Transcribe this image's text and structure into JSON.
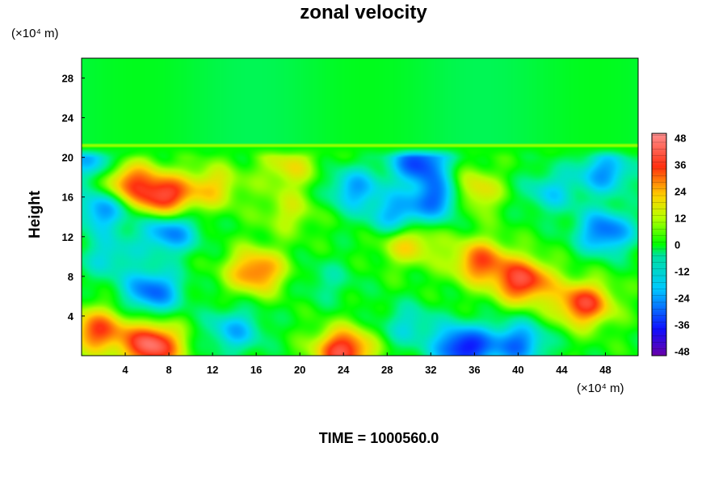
{
  "chart_data": {
    "type": "heatmap",
    "title": "zonal velocity",
    "ylabel": "Height",
    "xlabel": "",
    "x_unit": "(×10⁴ m)",
    "y_unit": "(×10⁴ m)",
    "xlim": [
      0,
      51
    ],
    "ylim": [
      0,
      30
    ],
    "x_ticks": [
      "4",
      "8",
      "12",
      "16",
      "20",
      "24",
      "28",
      "32",
      "36",
      "40",
      "44",
      "48"
    ],
    "y_ticks": [
      "4",
      "8",
      "12",
      "16",
      "20",
      "24",
      "28"
    ],
    "colorbar": {
      "range": [
        -50,
        50
      ],
      "ticks": [
        "48",
        "36",
        "24",
        "12",
        "0",
        "-12",
        "-24",
        "-36",
        "-48"
      ]
    },
    "grid": false,
    "background_value": 0,
    "features": [
      {
        "x": 6.5,
        "y": 6.5,
        "value": -30
      },
      {
        "x": 2.5,
        "y": 10,
        "value": -15
      },
      {
        "x": 16,
        "y": 8.5,
        "value": 30
      },
      {
        "x": 6.5,
        "y": 1,
        "value": 44
      },
      {
        "x": 1.5,
        "y": 2.5,
        "value": 32
      },
      {
        "x": 24,
        "y": 0.5,
        "value": 40
      },
      {
        "x": 35,
        "y": 0.8,
        "value": -40
      },
      {
        "x": 40,
        "y": 1.2,
        "value": -28
      },
      {
        "x": 40.5,
        "y": 7.5,
        "value": 38
      },
      {
        "x": 46,
        "y": 5.2,
        "value": 36
      },
      {
        "x": 36.5,
        "y": 9.5,
        "value": 30
      },
      {
        "x": 30,
        "y": 3,
        "value": -14
      },
      {
        "x": 22.5,
        "y": 7.5,
        "value": -8
      },
      {
        "x": 14,
        "y": 2.5,
        "value": -20
      },
      {
        "x": 7.5,
        "y": 16,
        "value": 38
      },
      {
        "x": 4,
        "y": 17.5,
        "value": 30
      },
      {
        "x": 12,
        "y": 17,
        "value": 18
      },
      {
        "x": 8,
        "y": 12.5,
        "value": -28
      },
      {
        "x": 2,
        "y": 14.8,
        "value": -26
      },
      {
        "x": 33,
        "y": 16,
        "value": -34
      },
      {
        "x": 31,
        "y": 19.6,
        "value": -34
      },
      {
        "x": 29,
        "y": 14,
        "value": -24
      },
      {
        "x": 30,
        "y": 11.5,
        "value": 22
      },
      {
        "x": 48,
        "y": 12.5,
        "value": -30
      },
      {
        "x": 48,
        "y": 18.5,
        "value": -24
      },
      {
        "x": 25,
        "y": 16.8,
        "value": -22
      },
      {
        "x": 19,
        "y": 14.5,
        "value": 12
      },
      {
        "x": 43,
        "y": 16.5,
        "value": -16
      },
      {
        "x": 35.5,
        "y": 16.5,
        "value": 26
      },
      {
        "x": 1,
        "y": 19.5,
        "value": -22
      },
      {
        "x": 19,
        "y": 19,
        "value": 16
      }
    ]
  }
}
